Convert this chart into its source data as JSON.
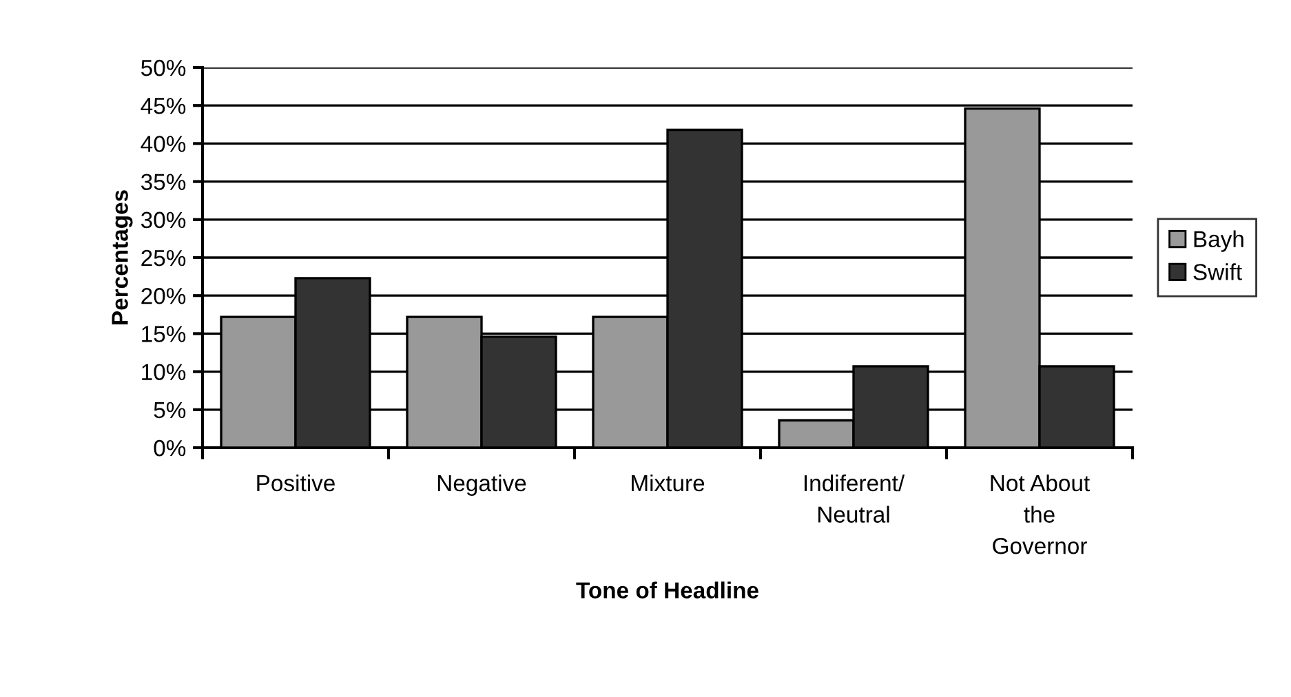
{
  "chart_data": {
    "type": "bar",
    "xlabel": "Tone of Headline",
    "ylabel": "Percentages",
    "categories": [
      "Positive",
      "Negative",
      "Mixture",
      "Indiferent/\nNeutral",
      "Not About\nthe\nGovernor"
    ],
    "series": [
      {
        "name": "Bayh",
        "color": "#999999",
        "values": [
          17.2,
          17.2,
          17.2,
          3.6,
          44.6
        ]
      },
      {
        "name": "Swift",
        "color": "#333333",
        "values": [
          22.3,
          14.6,
          41.8,
          10.7,
          10.7
        ]
      }
    ],
    "ylim": [
      0,
      50
    ],
    "yticks": [
      {
        "value": 0,
        "label": "0%"
      },
      {
        "value": 5,
        "label": "5%"
      },
      {
        "value": 10,
        "label": "10%"
      },
      {
        "value": 15,
        "label": "15%"
      },
      {
        "value": 20,
        "label": "20%"
      },
      {
        "value": 25,
        "label": "25%"
      },
      {
        "value": 30,
        "label": "30%"
      },
      {
        "value": 35,
        "label": "35%"
      },
      {
        "value": 40,
        "label": "40%"
      },
      {
        "value": 45,
        "label": "45%"
      },
      {
        "value": 50,
        "label": "50%"
      }
    ],
    "grid": "y",
    "legend": "right"
  }
}
